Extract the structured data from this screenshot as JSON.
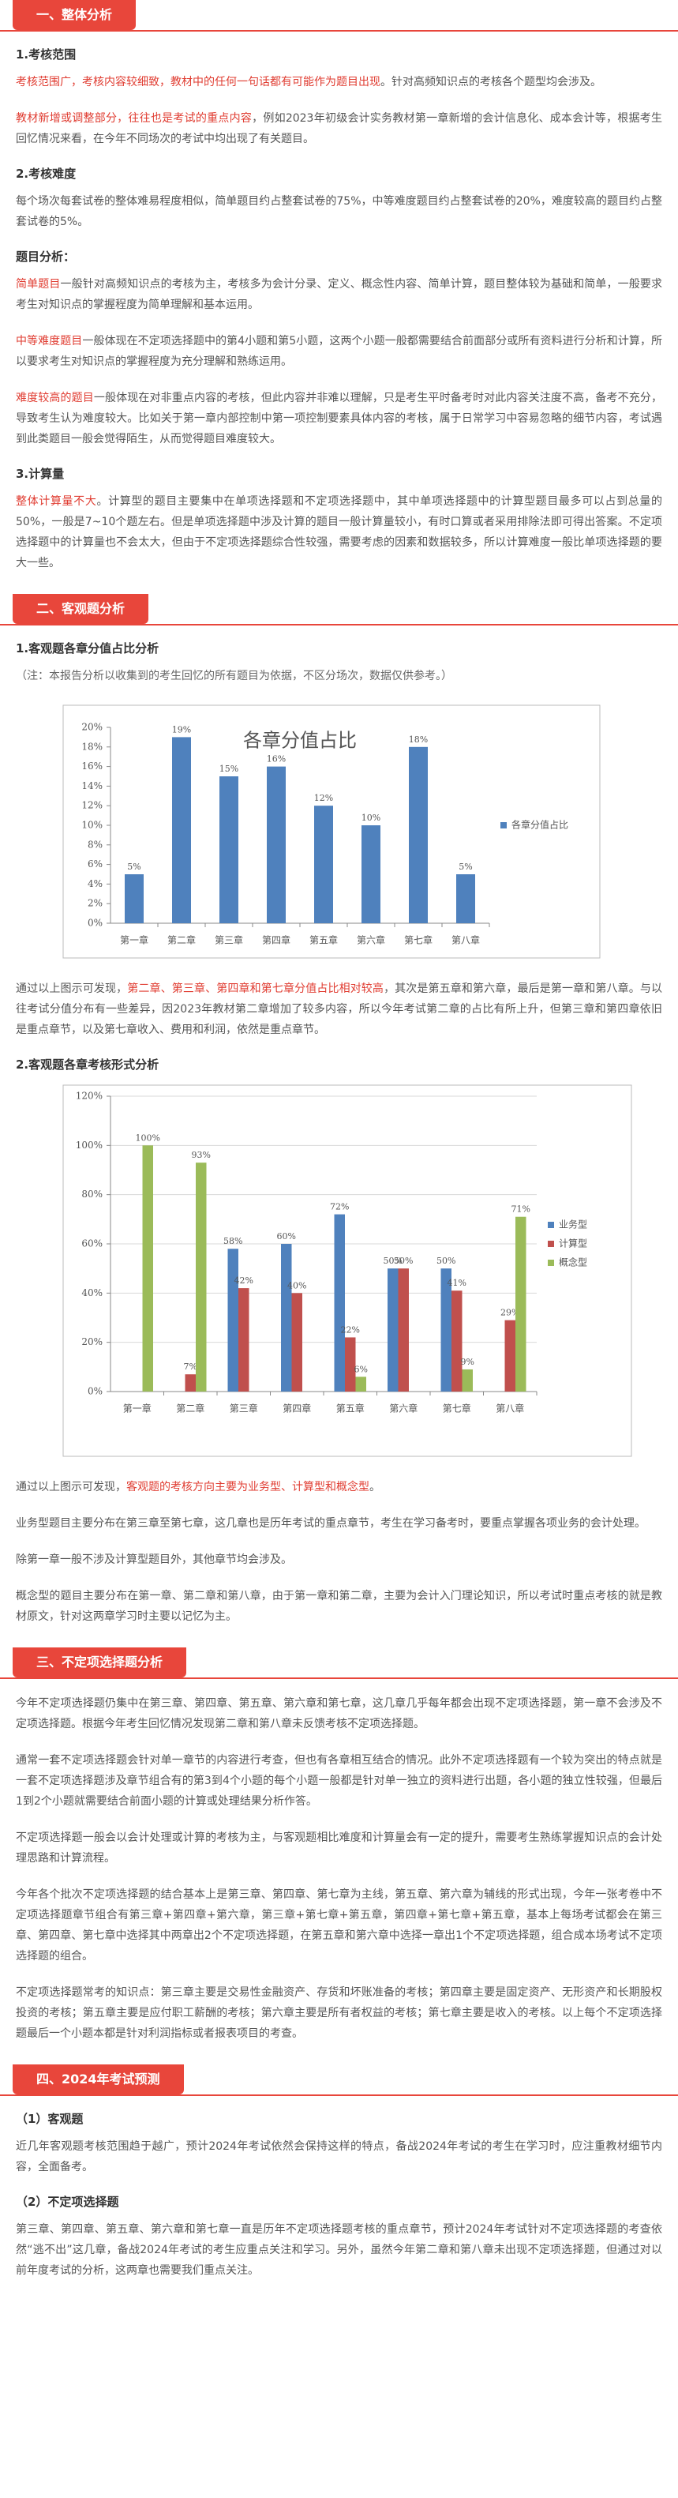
{
  "sections": [
    {
      "title": "一、整体分析",
      "blocks": [
        {
          "heading": "1.考核范围"
        },
        {
          "segments": [
            {
              "text": "考核范围广，考核内容较细致，教材中的任何一句话都有可能作为题目出现",
              "color": "#e03c31"
            },
            {
              "text": "。针对高频知识点的考核各个题型均会涉及。"
            }
          ]
        },
        {
          "segments": [
            {
              "text": "教材新增或调整部分，往往也是考试的重点内容",
              "color": "#e03c31"
            },
            {
              "text": "，例如2023年初级会计实务教材第一章新增的会计信息化、成本会计等，根据考生回忆情况来看，在今年不同场次的考试中均出现了有关题目。"
            }
          ]
        },
        {
          "heading": "2.考核难度"
        },
        {
          "segments": [
            {
              "text": "每个场次每套试卷的整体难易程度相似，简单题目约占整套试卷的75%，中等难度题目约占整套试卷的20%，难度较高的题目约占整套试卷的5%。"
            }
          ]
        },
        {
          "heading": "题目分析："
        },
        {
          "segments": [
            {
              "text": "简单题目",
              "color": "#e03c31"
            },
            {
              "text": "一般针对高频知识点的考核为主，考核多为会计分录、定义、概念性内容、简单计算，题目整体较为基础和简单，一般要求考生对知识点的掌握程度为简单理解和基本运用。"
            }
          ]
        },
        {
          "segments": [
            {
              "text": "中等难度题目",
              "color": "#e03c31"
            },
            {
              "text": "一般体现在不定项选择题中的第4小题和第5小题，这两个小题一般都需要结合前面部分或所有资料进行分析和计算，所以要求考生对知识点的掌握程度为充分理解和熟练运用。"
            }
          ]
        },
        {
          "segments": [
            {
              "text": "难度较高的题目",
              "color": "#e03c31"
            },
            {
              "text": "一般体现在对非重点内容的考核，但此内容并非难以理解，只是考生平时备考时对此内容关注度不高，备考不充分，导致考生认为难度较大。比如关于第一章内部控制中第一项控制要素具体内容的考核，属于日常学习中容易忽略的细节内容，考试遇到此类题目一般会觉得陌生，从而觉得题目难度较大。"
            }
          ]
        },
        {
          "heading": "3.计算量"
        },
        {
          "segments": [
            {
              "text": "整体计算量不大",
              "color": "#e03c31"
            },
            {
              "text": "。计算型的题目主要集中在单项选择题和不定项选择题中，其中单项选择题中的计算型题目最多可以占到总量的50%，一般是7~10个题左右。但是单项选择题中涉及计算的题目一般计算量较小，有时口算或者采用排除法即可得出答案。不定项选择题中的计算量也不会太大，但由于不定项选择题综合性较强，需要考虑的因素和数据较多，所以计算难度一般比单项选择题的要大一些。"
            }
          ]
        }
      ]
    },
    {
      "title": "二、客观题分析",
      "blocks": [
        {
          "heading": "1.客观题各章分值占比分析"
        },
        {
          "note": "（注：本报告分析以收集到的考生回忆的所有题目为依据，不区分场次，数据仅供参考。）"
        },
        {
          "chart_data": {
            "type": "bar",
            "title": "各章分值占比",
            "categories": [
              "第一章",
              "第二章",
              "第三章",
              "第四章",
              "第五章",
              "第六章",
              "第七章",
              "第八章"
            ],
            "series": [
              {
                "name": "各章分值占比",
                "color": "#4f81bd",
                "values": [
                  5,
                  19,
                  15,
                  16,
                  12,
                  10,
                  18,
                  5
                ],
                "value_labels": [
                  "5%",
                  "19%",
                  "15%",
                  "16%",
                  "12%",
                  "10%",
                  "18%",
                  "5%"
                ]
              }
            ],
            "ylim": [
              0,
              20
            ],
            "yticks": [
              {
                "value": 0,
                "label": "0%"
              },
              {
                "value": 2,
                "label": "2%"
              },
              {
                "value": 4,
                "label": "4%"
              },
              {
                "value": 6,
                "label": "6%"
              },
              {
                "value": 8,
                "label": "8%"
              },
              {
                "value": 10,
                "label": "10%"
              },
              {
                "value": 12,
                "label": "12%"
              },
              {
                "value": 14,
                "label": "14%"
              },
              {
                "value": 16,
                "label": "16%"
              },
              {
                "value": 18,
                "label": "18%"
              },
              {
                "value": 20,
                "label": "20%"
              }
            ],
            "grid": false,
            "legend": "right"
          }
        },
        {
          "segments": [
            {
              "text": "通过以上图示可发现，"
            },
            {
              "text": "第二章、第三章、第四章和第七章分值占比相对较高",
              "color": "#e03c31"
            },
            {
              "text": "，其次是第五章和第六章，最后是第一章和第八章。与以往考试分值分布有一些差异，因2023年教材第二章增加了较多内容，所以今年考试第二章的占比有所上升，但第三章和第四章依旧是重点章节，以及第七章收入、费用和利润，依然是重点章节。"
            }
          ]
        },
        {
          "heading": "2.客观题各章考核形式分析"
        },
        {
          "chart_data": {
            "type": "bar",
            "categories": [
              "第一章",
              "第二章",
              "第三章",
              "第四章",
              "第五章",
              "第六章",
              "第七章",
              "第八章"
            ],
            "series": [
              {
                "name": "业务型",
                "color": "#4f81bd",
                "values": [
                  0,
                  0,
                  58,
                  60,
                  72,
                  50,
                  50,
                  0
                ],
                "value_labels": [
                  null,
                  null,
                  "58%",
                  "60%",
                  "72%",
                  "50%",
                  "50%",
                  null
                ]
              },
              {
                "name": "计算型",
                "color": "#c0504d",
                "values": [
                  0,
                  7,
                  42,
                  40,
                  22,
                  50,
                  41,
                  29
                ],
                "value_labels": [
                  null,
                  "7%",
                  "42%",
                  "40%",
                  "22%",
                  "50%",
                  "41%",
                  "29%"
                ]
              },
              {
                "name": "概念型",
                "color": "#9bbb59",
                "values": [
                  100,
                  93,
                  0,
                  0,
                  6,
                  0,
                  9,
                  71
                ],
                "value_labels": [
                  "100%",
                  "93%",
                  null,
                  null,
                  "6%",
                  null,
                  "9%",
                  "71%"
                ]
              }
            ],
            "ylim": [
              0,
              120
            ],
            "yticks": [
              {
                "value": 0,
                "label": "0%"
              },
              {
                "value": 20,
                "label": "20%"
              },
              {
                "value": 40,
                "label": "40%"
              },
              {
                "value": 60,
                "label": "60%"
              },
              {
                "value": 80,
                "label": "80%"
              },
              {
                "value": 100,
                "label": "100%"
              },
              {
                "value": 120,
                "label": "120%"
              }
            ],
            "grid": true,
            "legend": "right"
          }
        },
        {
          "segments": [
            {
              "text": "通过以上图示可发现，"
            },
            {
              "text": "客观题的考核方向主要为业务型、计算型和概念型",
              "color": "#e03c31"
            },
            {
              "text": "。"
            }
          ]
        },
        {
          "segments": [
            {
              "text": "业务型题目主要分布在第三章至第七章，这几章也是历年考试的重点章节，考生在学习备考时，要重点掌握各项业务的会计处理。"
            }
          ]
        },
        {
          "segments": [
            {
              "text": "除第一章一般不涉及计算型题目外，其他章节均会涉及。"
            }
          ]
        },
        {
          "segments": [
            {
              "text": "概念型的题目主要分布在第一章、第二章和第八章，由于第一章和第二章，主要为会计入门理论知识，所以考试时重点考核的就是教材原文，针对这两章学习时主要以记忆为主。"
            }
          ]
        }
      ]
    },
    {
      "title": "三、不定项选择题分析",
      "blocks": [
        {
          "segments": [
            {
              "text": "今年不定项选择题仍集中在第三章、第四章、第五章、第六章和第七章，这几章几乎每年都会出现不定项选择题，第一章不会涉及不定项选择题。根据今年考生回忆情况发现第二章和第八章未反馈考核不定项选择题。"
            }
          ]
        },
        {
          "segments": [
            {
              "text": "通常一套不定项选择题会针对单一章节的内容进行考查，但也有各章相互结合的情况。此外不定项选择题有一个较为突出的特点就是一套不定项选择题涉及章节组合有的第3到4个小题的每个小题一般都是针对单一独立的资料进行出题，各小题的独立性较强，但最后1到2个小题就需要结合前面小题的计算或处理结果分析作答。"
            }
          ]
        },
        {
          "segments": [
            {
              "text": "不定项选择题一般会以会计处理或计算的考核为主，与客观题相比难度和计算量会有一定的提升，需要考生熟练掌握知识点的会计处理思路和计算流程。"
            }
          ]
        },
        {
          "segments": [
            {
              "text": "今年各个批次不定项选择题的结合基本上是第三章、第四章、第七章为主线，第五章、第六章为辅线的形式出现，今年一张考卷中不定项选择题章节组合有第三章+第四章+第六章，第三章+第七章+第五章，第四章+第七章+第五章，基本上每场考试都会在第三章、第四章、第七章中选择其中两章出2个不定项选择题，在第五章和第六章中选择一章出1个不定项选择题，组合成本场考试不定项选择题的组合。"
            }
          ]
        },
        {
          "segments": [
            {
              "text": "不定项选择题常考的知识点：第三章主要是交易性金融资产、存货和坏账准备的考核；第四章主要是固定资产、无形资产和长期股权投资的考核；第五章主要是应付职工薪酬的考核；第六章主要是所有者权益的考核；第七章主要是收入的考核。以上每个不定项选择题最后一个小题本都是针对利润指标或者报表项目的考查。"
            }
          ]
        }
      ]
    },
    {
      "title": "四、2024年考试预测",
      "blocks": [
        {
          "heading": "（1）客观题"
        },
        {
          "segments": [
            {
              "text": "近几年客观题考核范围趋于越广，预计2024年考试依然会保持这样的特点，备战2024年考试的考生在学习时，应注重教材细节内容，全面备考。"
            }
          ]
        },
        {
          "heading": "（2）不定项选择题"
        },
        {
          "segments": [
            {
              "text": "第三章、第四章、第五章、第六章和第七章一直是历年不定项选择题考核的重点章节，预计2024年考试针对不定项选择题的考查依然“逃不出”这几章，备战2024年考试的考生应重点关注和学习。另外，虽然今年第二章和第八章未出现不定项选择题，但通过对以前年度考试的分析，这两章也需要我们重点关注。"
            }
          ]
        }
      ]
    }
  ]
}
